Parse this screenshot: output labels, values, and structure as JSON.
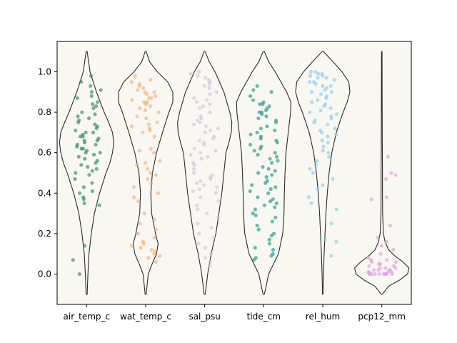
{
  "chart_data": {
    "type": "violin",
    "title": "",
    "xlabel": "",
    "ylabel": "",
    "ylim": [
      -0.15,
      1.15
    ],
    "yticks": [
      0.0,
      0.2,
      0.4,
      0.6,
      0.8,
      1.0
    ],
    "ytick_labels": [
      "0.0",
      "0.2",
      "0.4",
      "0.6",
      "0.8",
      "1.0"
    ],
    "categories": [
      "air_temp_c",
      "wat_temp_c",
      "sal_psu",
      "tide_cm",
      "rel_hum",
      "pcp12_mm"
    ],
    "background_color": "#f9f7f2",
    "outline_color": "#2b2b2b",
    "series": [
      {
        "category": "air_temp_c",
        "color": "#2e8b57",
        "violin_range": [
          -0.1,
          1.1
        ],
        "density": [
          [
            -0.1,
            0.2
          ],
          [
            0.0,
            0.5
          ],
          [
            0.1,
            0.9
          ],
          [
            0.2,
            1.8
          ],
          [
            0.3,
            3.0
          ],
          [
            0.4,
            5.0
          ],
          [
            0.5,
            7.5
          ],
          [
            0.55,
            9.0
          ],
          [
            0.6,
            10.0
          ],
          [
            0.65,
            10.5
          ],
          [
            0.7,
            10.0
          ],
          [
            0.75,
            8.5
          ],
          [
            0.8,
            6.8
          ],
          [
            0.9,
            3.8
          ],
          [
            1.0,
            1.3
          ],
          [
            1.1,
            0.2
          ]
        ],
        "points": [
          0.98,
          0.95,
          0.93,
          0.91,
          0.9,
          0.88,
          0.87,
          0.85,
          0.84,
          0.83,
          0.82,
          0.8,
          0.79,
          0.78,
          0.77,
          0.76,
          0.75,
          0.74,
          0.73,
          0.72,
          0.71,
          0.7,
          0.7,
          0.69,
          0.68,
          0.68,
          0.67,
          0.66,
          0.66,
          0.65,
          0.64,
          0.64,
          0.63,
          0.62,
          0.62,
          0.61,
          0.6,
          0.6,
          0.59,
          0.58,
          0.57,
          0.56,
          0.55,
          0.54,
          0.53,
          0.52,
          0.51,
          0.5,
          0.49,
          0.47,
          0.45,
          0.43,
          0.41,
          0.4,
          0.38,
          0.37,
          0.35,
          0.34,
          0.14,
          0.07,
          0.0
        ]
      },
      {
        "category": "wat_temp_c",
        "color": "#f0b27a",
        "violin_range": [
          -0.1,
          1.1
        ],
        "density": [
          [
            -0.1,
            0.2
          ],
          [
            0.0,
            1.0
          ],
          [
            0.05,
            2.5
          ],
          [
            0.1,
            4.2
          ],
          [
            0.15,
            4.8
          ],
          [
            0.2,
            3.8
          ],
          [
            0.3,
            2.3
          ],
          [
            0.4,
            2.0
          ],
          [
            0.5,
            2.6
          ],
          [
            0.6,
            4.2
          ],
          [
            0.7,
            6.5
          ],
          [
            0.8,
            9.0
          ],
          [
            0.85,
            10.5
          ],
          [
            0.9,
            10.5
          ],
          [
            0.95,
            8.5
          ],
          [
            1.0,
            4.5
          ],
          [
            1.05,
            1.5
          ],
          [
            1.1,
            0.2
          ]
        ],
        "points": [
          0.98,
          0.96,
          0.95,
          0.94,
          0.93,
          0.92,
          0.91,
          0.9,
          0.9,
          0.89,
          0.88,
          0.87,
          0.87,
          0.86,
          0.85,
          0.85,
          0.84,
          0.83,
          0.82,
          0.81,
          0.8,
          0.78,
          0.77,
          0.75,
          0.74,
          0.73,
          0.72,
          0.71,
          0.7,
          0.68,
          0.62,
          0.61,
          0.6,
          0.56,
          0.55,
          0.54,
          0.52,
          0.5,
          0.49,
          0.47,
          0.45,
          0.43,
          0.4,
          0.38,
          0.36,
          0.3,
          0.27,
          0.25,
          0.22,
          0.2,
          0.18,
          0.16,
          0.15,
          0.14,
          0.13,
          0.12,
          0.11,
          0.1,
          0.09,
          0.08,
          0.06
        ]
      },
      {
        "category": "sal_psu",
        "color": "#cfc6dd",
        "violin_range": [
          -0.1,
          1.1
        ],
        "density": [
          [
            -0.1,
            0.2
          ],
          [
            0.0,
            1.0
          ],
          [
            0.1,
            2.2
          ],
          [
            0.2,
            3.8
          ],
          [
            0.3,
            4.8
          ],
          [
            0.4,
            5.8
          ],
          [
            0.5,
            6.5
          ],
          [
            0.6,
            7.2
          ],
          [
            0.65,
            8.2
          ],
          [
            0.7,
            9.0
          ],
          [
            0.75,
            9.2
          ],
          [
            0.8,
            8.5
          ],
          [
            0.85,
            7.5
          ],
          [
            0.9,
            6.5
          ],
          [
            1.0,
            3.5
          ],
          [
            1.05,
            1.5
          ],
          [
            1.1,
            0.2
          ]
        ],
        "points": [
          1.0,
          0.99,
          0.98,
          0.97,
          0.96,
          0.95,
          0.94,
          0.93,
          0.92,
          0.9,
          0.89,
          0.87,
          0.86,
          0.85,
          0.84,
          0.83,
          0.82,
          0.8,
          0.78,
          0.77,
          0.76,
          0.75,
          0.74,
          0.73,
          0.72,
          0.71,
          0.7,
          0.68,
          0.67,
          0.66,
          0.65,
          0.64,
          0.62,
          0.61,
          0.6,
          0.59,
          0.58,
          0.57,
          0.55,
          0.54,
          0.52,
          0.5,
          0.49,
          0.48,
          0.47,
          0.46,
          0.45,
          0.44,
          0.43,
          0.42,
          0.41,
          0.4,
          0.38,
          0.36,
          0.34,
          0.32,
          0.3,
          0.28,
          0.25,
          0.23,
          0.2,
          0.18,
          0.15,
          0.13,
          0.1,
          0.08,
          0.06,
          0.04
        ]
      },
      {
        "category": "tide_cm",
        "color": "#1a9a8f",
        "violin_range": [
          -0.1,
          1.1
        ],
        "density": [
          [
            -0.1,
            0.2
          ],
          [
            0.0,
            1.5
          ],
          [
            0.05,
            3.0
          ],
          [
            0.1,
            4.5
          ],
          [
            0.2,
            5.8
          ],
          [
            0.3,
            6.2
          ],
          [
            0.4,
            6.3
          ],
          [
            0.5,
            6.5
          ],
          [
            0.6,
            6.8
          ],
          [
            0.7,
            7.5
          ],
          [
            0.8,
            8.2
          ],
          [
            0.85,
            8.3
          ],
          [
            0.9,
            7.0
          ],
          [
            1.0,
            3.5
          ],
          [
            1.05,
            1.5
          ],
          [
            1.1,
            0.2
          ]
        ],
        "points": [
          0.93,
          0.91,
          0.9,
          0.88,
          0.86,
          0.85,
          0.84,
          0.84,
          0.83,
          0.82,
          0.81,
          0.8,
          0.8,
          0.79,
          0.78,
          0.77,
          0.76,
          0.75,
          0.73,
          0.72,
          0.71,
          0.7,
          0.69,
          0.68,
          0.67,
          0.66,
          0.65,
          0.64,
          0.63,
          0.62,
          0.61,
          0.6,
          0.59,
          0.58,
          0.57,
          0.56,
          0.55,
          0.53,
          0.52,
          0.51,
          0.5,
          0.49,
          0.48,
          0.46,
          0.45,
          0.44,
          0.43,
          0.42,
          0.41,
          0.4,
          0.38,
          0.37,
          0.36,
          0.35,
          0.34,
          0.33,
          0.32,
          0.3,
          0.29,
          0.28,
          0.26,
          0.24,
          0.22,
          0.2,
          0.19,
          0.17,
          0.15,
          0.13,
          0.12,
          0.1,
          0.09,
          0.08,
          0.07
        ]
      },
      {
        "category": "rel_hum",
        "color": "#87ceeb",
        "violin_range": [
          -0.1,
          1.1
        ],
        "density": [
          [
            -0.1,
            0.1
          ],
          [
            0.0,
            0.3
          ],
          [
            0.1,
            0.6
          ],
          [
            0.2,
            1.0
          ],
          [
            0.3,
            1.4
          ],
          [
            0.4,
            2.0
          ],
          [
            0.5,
            2.8
          ],
          [
            0.6,
            4.0
          ],
          [
            0.7,
            6.0
          ],
          [
            0.8,
            9.0
          ],
          [
            0.85,
            10.8
          ],
          [
            0.9,
            12.0
          ],
          [
            0.95,
            11.5
          ],
          [
            1.0,
            8.5
          ],
          [
            1.05,
            4.5
          ],
          [
            1.1,
            0.3
          ]
        ],
        "points": [
          1.0,
          1.0,
          0.99,
          0.99,
          0.98,
          0.98,
          0.97,
          0.97,
          0.96,
          0.95,
          0.95,
          0.94,
          0.93,
          0.93,
          0.92,
          0.91,
          0.9,
          0.9,
          0.89,
          0.88,
          0.87,
          0.86,
          0.85,
          0.84,
          0.83,
          0.82,
          0.81,
          0.8,
          0.79,
          0.78,
          0.77,
          0.76,
          0.75,
          0.74,
          0.72,
          0.71,
          0.7,
          0.69,
          0.68,
          0.66,
          0.65,
          0.63,
          0.61,
          0.6,
          0.58,
          0.56,
          0.54,
          0.52,
          0.5,
          0.47,
          0.44,
          0.42,
          0.38,
          0.35,
          0.32,
          0.25,
          0.17,
          0.16,
          0.09
        ]
      },
      {
        "category": "pcp12_mm",
        "color": "#dda0dd",
        "violin_range": [
          -0.1,
          1.1
        ],
        "density": [
          [
            -0.1,
            0.2
          ],
          [
            -0.06,
            2.5
          ],
          [
            -0.03,
            6.5
          ],
          [
            0.0,
            9.5
          ],
          [
            0.03,
            10.0
          ],
          [
            0.06,
            7.8
          ],
          [
            0.09,
            4.8
          ],
          [
            0.12,
            2.5
          ],
          [
            0.16,
            1.2
          ],
          [
            0.2,
            0.6
          ],
          [
            0.3,
            0.3
          ],
          [
            0.4,
            0.25
          ],
          [
            0.5,
            0.25
          ],
          [
            0.6,
            0.2
          ],
          [
            0.8,
            0.15
          ],
          [
            1.0,
            0.12
          ],
          [
            1.1,
            0.1
          ]
        ],
        "points": [
          0.58,
          0.5,
          0.49,
          0.47,
          0.38,
          0.37,
          0.24,
          0.18,
          0.16,
          0.14,
          0.12,
          0.1,
          0.08,
          0.07,
          0.07,
          0.06,
          0.06,
          0.05,
          0.05,
          0.04,
          0.04,
          0.03,
          0.03,
          0.03,
          0.02,
          0.02,
          0.02,
          0.02,
          0.01,
          0.01,
          0.01,
          0.01,
          0.0,
          0.0,
          0.0,
          0.0,
          0.0,
          0.0,
          0.0,
          0.0,
          0.0,
          0.0
        ]
      }
    ]
  }
}
